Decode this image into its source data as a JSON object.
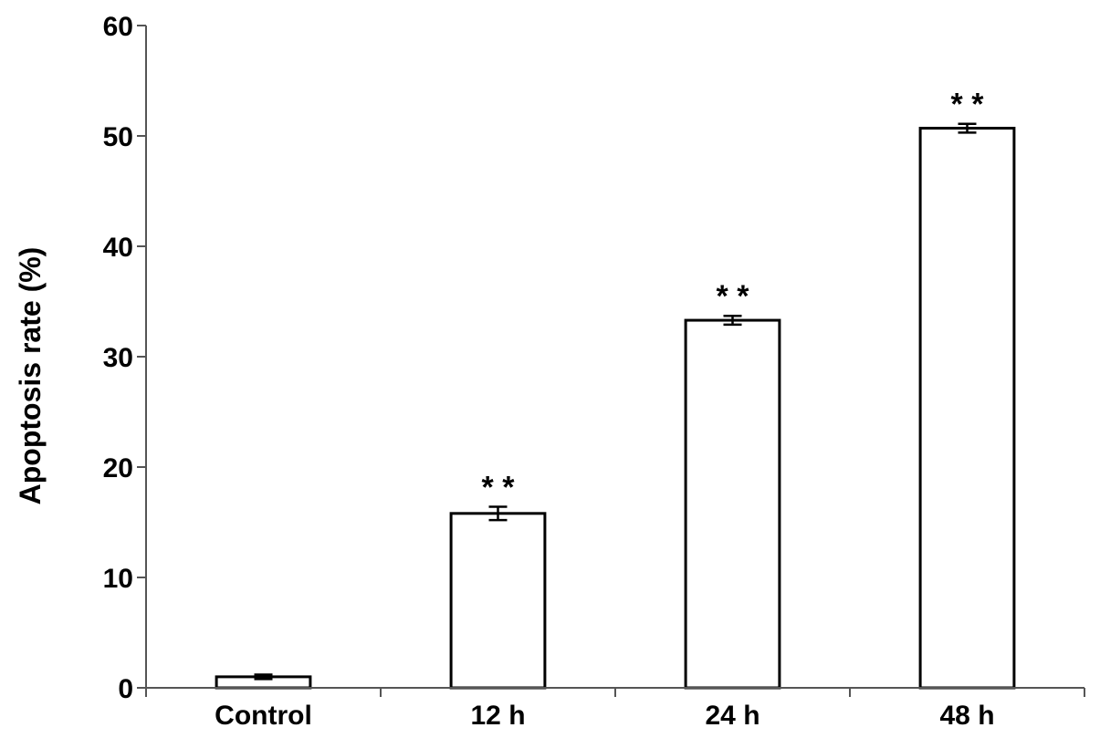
{
  "chart_data": {
    "type": "bar",
    "categories": [
      "Control",
      "12 h",
      "24 h",
      "48 h"
    ],
    "values": [
      1.0,
      15.8,
      33.3,
      50.7
    ],
    "errors": [
      0.2,
      0.6,
      0.4,
      0.4
    ],
    "annotations": [
      "",
      "* *",
      "* *",
      "* *"
    ],
    "ylabel": "Apoptosis rate (%)",
    "xlabel": "",
    "ylim": [
      0,
      60
    ],
    "yticks": [
      0,
      10,
      20,
      30,
      40,
      50,
      60
    ],
    "ytick_labels": [
      "0",
      "10",
      "20",
      "30",
      "40",
      "50",
      "60"
    ],
    "grid": false,
    "bar_fill": "#ffffff",
    "bar_stroke": "#000000"
  }
}
